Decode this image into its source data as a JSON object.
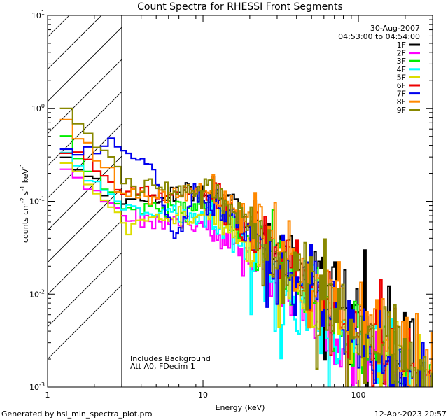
{
  "chart_data": {
    "type": "line",
    "title": "Count Spectra for RHESSI Front Segments",
    "xlabel": "Energy (keV)",
    "ylabel": "counts cm",
    "ylabel_sup1": "-2",
    "ylabel_mid": " s",
    "ylabel_sup2": "-1",
    "ylabel_end": " keV",
    "ylabel_sup3": "-1",
    "xscale": "log",
    "yscale": "log",
    "xlim": [
      1,
      300
    ],
    "ylim": [
      0.001,
      10
    ],
    "x_ticks": [
      {
        "value": 1,
        "label": "1"
      },
      {
        "value": 10,
        "label": "10"
      },
      {
        "value": 100,
        "label": "100"
      }
    ],
    "y_ticks": [
      {
        "value": 0.001,
        "base": "10",
        "exp": "-3"
      },
      {
        "value": 0.01,
        "base": "10",
        "exp": "-2"
      },
      {
        "value": 0.1,
        "base": "10",
        "exp": "-1"
      },
      {
        "value": 1,
        "base": "10",
        "exp": "0"
      },
      {
        "value": 10,
        "base": "10",
        "exp": "1"
      }
    ],
    "shaded_region": {
      "from": 1,
      "to": 3,
      "pattern": "diagonal hatch"
    },
    "vertical_line": 3,
    "date": "30-Aug-2007",
    "time_range": "04:53:00 to 04:54:00",
    "annotations": [
      "Includes Background",
      "Att A0, FDecim 1"
    ],
    "legend_position": "top-right",
    "series": [
      {
        "name": "1F",
        "color": "#000000",
        "y_at_1_2keV": 0.29,
        "y_at_3keV": 0.095,
        "y_at_10keV": 0.14
      },
      {
        "name": "2F",
        "color": "#ff00ff",
        "y_at_1_2keV": 0.24,
        "y_at_3keV": 0.07,
        "y_at_10keV": 0.055
      },
      {
        "name": "3F",
        "color": "#00ee00",
        "y_at_1_2keV": 0.5,
        "y_at_3keV": 0.08,
        "y_at_10keV": 0.09
      },
      {
        "name": "4F",
        "color": "#00ffff",
        "y_at_1_2keV": 0.32,
        "y_at_3keV": 0.085,
        "y_at_10keV": 0.065
      },
      {
        "name": "5F",
        "color": "#dddd00",
        "y_at_1_2keV": 0.26,
        "y_at_3keV": 0.06,
        "y_at_10keV": 0.07
      },
      {
        "name": "6F",
        "color": "#ee0000",
        "y_at_1_2keV": 0.4,
        "y_at_3keV": 0.12,
        "y_at_10keV": 0.12
      },
      {
        "name": "7F",
        "color": "#0000ee",
        "y_at_1_2keV": 0.3,
        "y_at_3keV": 0.36,
        "y_at_10keV": 0.1
      },
      {
        "name": "8F",
        "color": "#ff8800",
        "y_at_1_2keV": 0.7,
        "y_at_3keV": 0.12,
        "y_at_10keV": 0.13
      },
      {
        "name": "9F",
        "color": "#888800",
        "y_at_1_2keV": 1.2,
        "y_at_3keV": 0.15,
        "y_at_10keV": 0.12
      }
    ]
  },
  "footer": {
    "generated": "Generated by hsi_min_spectra_plot.pro",
    "timestamp": "12-Apr-2023 20:57"
  }
}
